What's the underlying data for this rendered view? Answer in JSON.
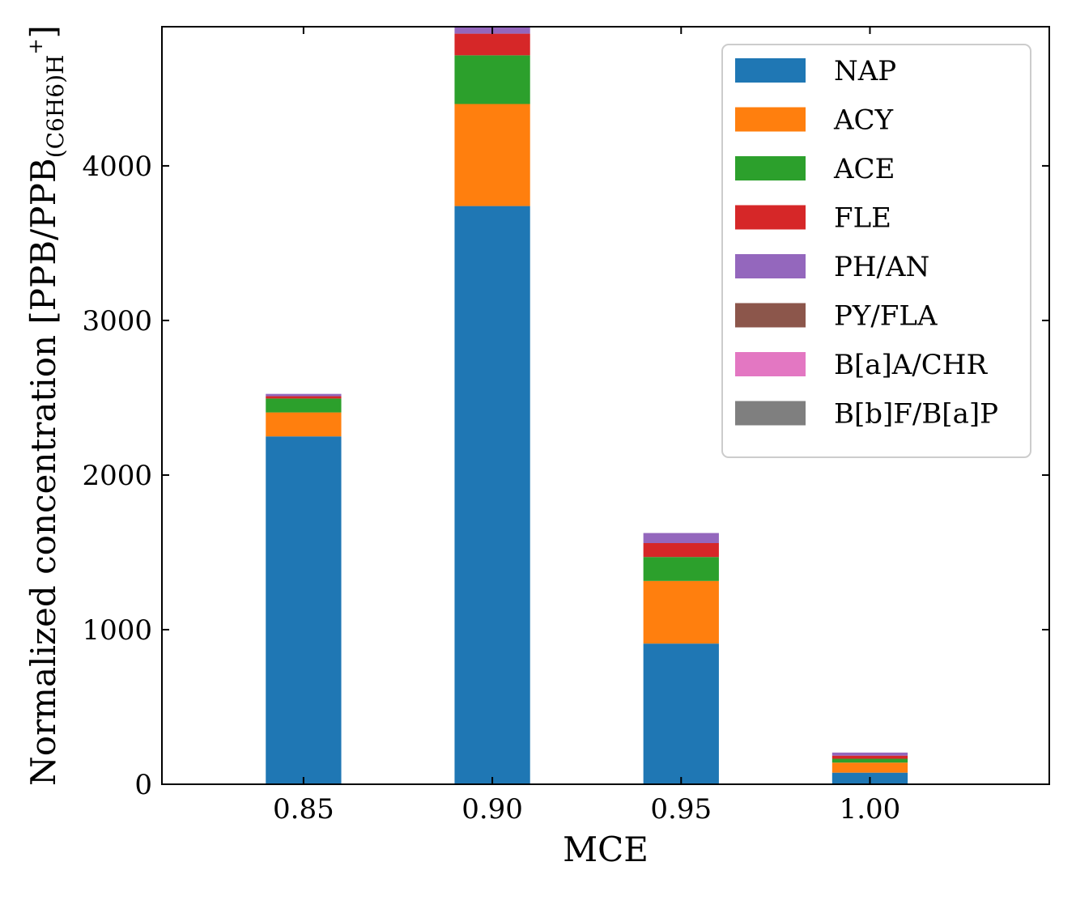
{
  "chart_data": {
    "type": "bar",
    "stacked": true,
    "xlabel": "MCE",
    "ylabel": "Normalized concentration [PPB/PPB(C6H6)H+]",
    "ylabel_parts": {
      "main": "Normalized concentration [PPB/PPB",
      "sub": "(C6H6)H",
      "sup": "+",
      "close": "]"
    },
    "categories": [
      "0.85",
      "0.90",
      "0.95",
      "1.00"
    ],
    "x_values": [
      0.85,
      0.9,
      0.95,
      1.0
    ],
    "xlim": [
      0.8125,
      1.0475
    ],
    "ylim": [
      0,
      4900
    ],
    "yticks": [
      0,
      1000,
      2000,
      3000,
      4000
    ],
    "ytick_labels": [
      "0",
      "1000",
      "2000",
      "3000",
      "4000"
    ],
    "xtick_labels": [
      "0.85",
      "0.90",
      "0.95",
      "1.00"
    ],
    "bar_width": 0.02,
    "legend_position": "top-right",
    "series": [
      {
        "name": "NAP",
        "color": "#1f77b4",
        "values": [
          2250,
          3740,
          910,
          75
        ]
      },
      {
        "name": "ACY",
        "color": "#ff7f0e",
        "values": [
          155,
          660,
          405,
          65
        ]
      },
      {
        "name": "ACE",
        "color": "#2ca02c",
        "values": [
          90,
          315,
          155,
          25
        ]
      },
      {
        "name": "FLE",
        "color": "#d62728",
        "values": [
          15,
          140,
          90,
          20
        ]
      },
      {
        "name": "PH/AN",
        "color": "#9467bd",
        "values": [
          15,
          60,
          65,
          20
        ]
      },
      {
        "name": "PY/FLA",
        "color": "#8c564b",
        "values": [
          0,
          0,
          0,
          0
        ]
      },
      {
        "name": "B[a]A/CHR",
        "color": "#e377c2",
        "values": [
          0,
          0,
          0,
          0
        ]
      },
      {
        "name": "B[b]F/B[a]P",
        "color": "#7f7f7f",
        "values": [
          0,
          0,
          0,
          0
        ]
      }
    ]
  }
}
